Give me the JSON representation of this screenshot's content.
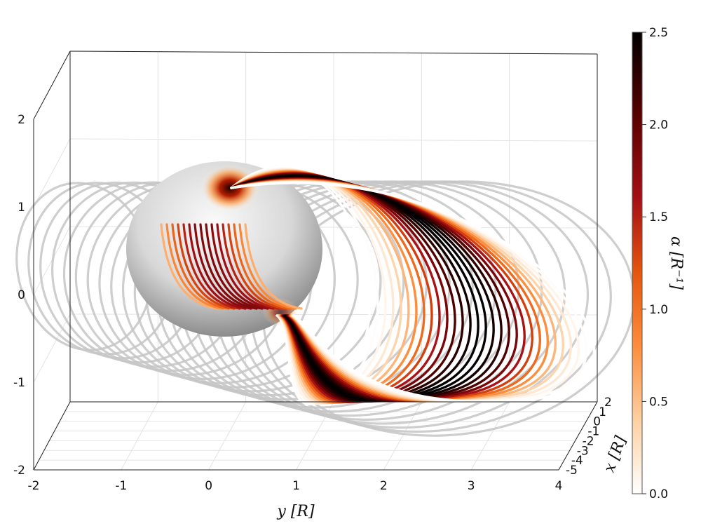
{
  "chart_data": {
    "type": "3d-line",
    "ylabel_axis": "y [R]",
    "xlabel_axis": "x [R]",
    "colorbar_label": "α [R⁻¹]",
    "y_axis": {
      "range": [
        -2,
        4
      ],
      "ticks": [
        "-2",
        "-1",
        "0",
        "1",
        "2",
        "3",
        "4"
      ]
    },
    "z_axis": {
      "range": [
        -2,
        2
      ],
      "ticks": [
        "-2",
        "-1",
        "0",
        "1",
        "2"
      ]
    },
    "x_axis": {
      "range": [
        -5,
        2
      ],
      "ticks": [
        "2",
        "1",
        "0",
        "-1",
        "-2",
        "-3",
        "-4",
        "-5"
      ]
    },
    "colorbar": {
      "range": [
        0,
        2.5
      ],
      "ticks": [
        "0.0",
        "0.5",
        "1.0",
        "1.5",
        "2.0",
        "2.5"
      ],
      "colormap": [
        "#ffffff",
        "#fdd0a2",
        "#fd8d3c",
        "#e6550d",
        "#a50f15",
        "#5a0000",
        "#000000"
      ]
    },
    "elements": [
      "unit sphere (gray shading)",
      "flux-rope field lines colored by alpha",
      "gray projected field lines"
    ],
    "grid": true
  }
}
